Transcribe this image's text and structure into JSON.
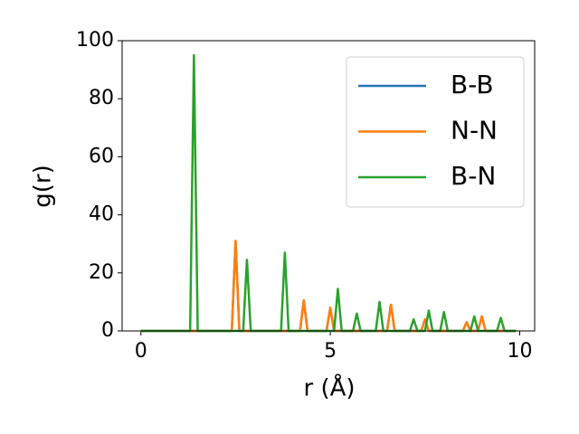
{
  "chart_data": {
    "type": "line",
    "xlabel": "r (Å)",
    "ylabel": "g(r)",
    "x": [
      0,
      0.1,
      0.2,
      0.3,
      0.4,
      0.5,
      0.6,
      0.7,
      0.8,
      0.9,
      1,
      1.1,
      1.2,
      1.3,
      1.4,
      1.5,
      1.6,
      1.7,
      1.8,
      1.9,
      2,
      2.1,
      2.2,
      2.3,
      2.4,
      2.5,
      2.6,
      2.7,
      2.8,
      2.9,
      3,
      3.1,
      3.2,
      3.3,
      3.4,
      3.5,
      3.6,
      3.7,
      3.8,
      3.9,
      4,
      4.1,
      4.2,
      4.3,
      4.4,
      4.5,
      4.6,
      4.7,
      4.8,
      4.9,
      5,
      5.1,
      5.2,
      5.3,
      5.4,
      5.5,
      5.6,
      5.7,
      5.8,
      5.9,
      6,
      6.1,
      6.2,
      6.3,
      6.4,
      6.5,
      6.6,
      6.7,
      6.8,
      6.9,
      7,
      7.1,
      7.2,
      7.3,
      7.4,
      7.5,
      7.6,
      7.7,
      7.8,
      7.9,
      8,
      8.1,
      8.2,
      8.3,
      8.4,
      8.5,
      8.6,
      8.7,
      8.8,
      8.9,
      9,
      9.1,
      9.2,
      9.3,
      9.4,
      9.5,
      9.6,
      9.7,
      9.8,
      9.9
    ],
    "series": [
      {
        "name": "B-B",
        "color": "#1f77b4",
        "values": [
          0,
          0,
          0,
          0,
          0,
          0,
          0,
          0,
          0,
          0,
          0,
          0,
          0,
          0,
          0,
          0,
          0,
          0,
          0,
          0,
          0,
          0,
          0,
          0,
          0,
          31,
          0,
          0,
          0,
          0,
          0,
          0,
          0,
          0,
          0,
          0,
          0,
          0,
          0,
          0,
          0,
          0,
          0,
          10.5,
          0,
          0,
          0,
          0,
          0,
          0,
          8,
          0,
          0,
          0,
          0,
          0,
          0,
          0,
          0,
          0,
          0,
          0,
          0,
          0,
          0,
          0,
          9,
          0,
          0,
          0,
          0,
          0,
          0,
          0,
          0,
          4,
          0,
          0,
          0,
          0,
          0,
          0,
          0,
          0,
          0,
          0,
          3,
          0,
          0,
          0,
          5,
          0,
          0,
          0,
          0,
          0,
          0,
          0,
          0,
          0
        ]
      },
      {
        "name": "N-N",
        "color": "#ff7f0e",
        "values": [
          0,
          0,
          0,
          0,
          0,
          0,
          0,
          0,
          0,
          0,
          0,
          0,
          0,
          0,
          0,
          0,
          0,
          0,
          0,
          0,
          0,
          0,
          0,
          0,
          0,
          31,
          0,
          0,
          0,
          0,
          0,
          0,
          0,
          0,
          0,
          0,
          0,
          0,
          0,
          0,
          0,
          0,
          0,
          10.5,
          0,
          0,
          0,
          0,
          0,
          0,
          8,
          0,
          0,
          0,
          0,
          0,
          0,
          0,
          0,
          0,
          0,
          0,
          0,
          0,
          0,
          0,
          9,
          0,
          0,
          0,
          0,
          0,
          0,
          0,
          0,
          4,
          0,
          0,
          0,
          0,
          0,
          0,
          0,
          0,
          0,
          0,
          3,
          0,
          0,
          0,
          5,
          0,
          0,
          0,
          0,
          0,
          0,
          0,
          0,
          0
        ]
      },
      {
        "name": "B-N",
        "color": "#2ca02c",
        "values": [
          0,
          0,
          0,
          0,
          0,
          0,
          0,
          0,
          0,
          0,
          0,
          0,
          0,
          0,
          95,
          0,
          0,
          0,
          0,
          0,
          0,
          0,
          0,
          0,
          0,
          0,
          0,
          0,
          24.5,
          0,
          0,
          0,
          0,
          0,
          0,
          0,
          0,
          0,
          27,
          0,
          0,
          0,
          0,
          0,
          0,
          0,
          0,
          0,
          0,
          0,
          0,
          0,
          14.5,
          0,
          0,
          0,
          0,
          6,
          0,
          0,
          0,
          0,
          0,
          10,
          0,
          0,
          0,
          0,
          0,
          0,
          0,
          0,
          4,
          0,
          0,
          0,
          7,
          0,
          0,
          0,
          6.5,
          0,
          0,
          0,
          0,
          0,
          0,
          0,
          5,
          0,
          0,
          0,
          0,
          0,
          0,
          4.5,
          0,
          0,
          0,
          0
        ]
      }
    ],
    "xlim": [
      -0.495,
      10.395
    ],
    "xticks": [
      0,
      5,
      10
    ],
    "ylim": [
      0,
      100
    ],
    "yticks": [
      0,
      20,
      40,
      60,
      80,
      100
    ],
    "legend": "upper right",
    "grid": false
  }
}
